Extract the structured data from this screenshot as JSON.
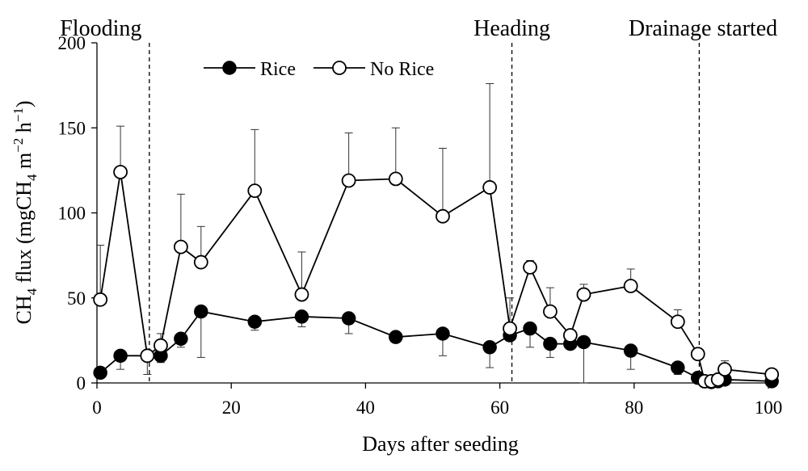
{
  "chart_data": {
    "type": "line",
    "xlabel": "Days after seeding",
    "ylabel": {
      "pre": "CH",
      "sub1": "4",
      "mid1": " flux (mgCH",
      "sub2": "4",
      "mid2": " m",
      "sup1": "−2",
      "mid3": " h",
      "sup2": "−1",
      "post": ")"
    },
    "xlim": [
      0,
      100
    ],
    "ylim": [
      0,
      200
    ],
    "xticks": [
      0,
      20,
      40,
      60,
      80,
      100
    ],
    "yticks": [
      0,
      50,
      100,
      150,
      200
    ],
    "legend_position": "top-left",
    "events": [
      {
        "label": "Flooding",
        "x": 7.8
      },
      {
        "label": "Heading",
        "x": 61.8
      },
      {
        "label": "Drainage started",
        "x": 89.7
      }
    ],
    "series": [
      {
        "name": "Rice",
        "marker": "filled",
        "points": [
          {
            "x": 0.5,
            "y": 6,
            "err": 0
          },
          {
            "x": 3.5,
            "y": 16,
            "err": 0
          },
          {
            "x": 7.5,
            "y": 16,
            "err": 0
          },
          {
            "x": 9.5,
            "y": 16,
            "err": 0
          },
          {
            "x": 12.5,
            "y": 26,
            "err": 0
          },
          {
            "x": 15.5,
            "y": 42,
            "err": 0
          },
          {
            "x": 23.5,
            "y": 36,
            "err": 0
          },
          {
            "x": 30.5,
            "y": 39,
            "err": 0
          },
          {
            "x": 37.5,
            "y": 38,
            "err": 0
          },
          {
            "x": 44.5,
            "y": 27,
            "err": 0
          },
          {
            "x": 51.5,
            "y": 29,
            "err": 0
          },
          {
            "x": 58.5,
            "y": 21,
            "err": 0
          },
          {
            "x": 61.5,
            "y": 28,
            "err": 0
          },
          {
            "x": 64.5,
            "y": 32,
            "err": 0
          },
          {
            "x": 67.5,
            "y": 23,
            "err": 0
          },
          {
            "x": 70.5,
            "y": 23,
            "err": 0
          },
          {
            "x": 72.5,
            "y": 24,
            "err": 0
          },
          {
            "x": 79.5,
            "y": 19,
            "err": 0
          },
          {
            "x": 86.5,
            "y": 9,
            "err": 0
          },
          {
            "x": 89.5,
            "y": 3,
            "err": 0
          },
          {
            "x": 90.5,
            "y": 1,
            "err": 0
          },
          {
            "x": 91.5,
            "y": 0.5,
            "err": 0
          },
          {
            "x": 92.5,
            "y": 1,
            "err": 0
          },
          {
            "x": 93.5,
            "y": 2,
            "err": 0
          },
          {
            "x": 100.5,
            "y": 1,
            "err": 0
          }
        ]
      },
      {
        "name": "No Rice",
        "marker": "open",
        "points": [
          {
            "x": 0.5,
            "y": 49,
            "err": 32
          },
          {
            "x": 3.5,
            "y": 124,
            "err": 27
          },
          {
            "x": 7.5,
            "y": 16,
            "err": 0
          },
          {
            "x": 9.5,
            "y": 22,
            "err": 7
          },
          {
            "x": 12.5,
            "y": 80,
            "err": 31
          },
          {
            "x": 15.5,
            "y": 71,
            "err": 21
          },
          {
            "x": 23.5,
            "y": 113,
            "err": 36
          },
          {
            "x": 30.5,
            "y": 52,
            "err": 25
          },
          {
            "x": 37.5,
            "y": 119,
            "err": 28
          },
          {
            "x": 44.5,
            "y": 120,
            "err": 30
          },
          {
            "x": 51.5,
            "y": 98,
            "err": 40
          },
          {
            "x": 58.5,
            "y": 115,
            "err": 61
          },
          {
            "x": 61.5,
            "y": 32,
            "err": 18
          },
          {
            "x": 64.5,
            "y": 68,
            "err": 4
          },
          {
            "x": 67.5,
            "y": 42,
            "err": 14
          },
          {
            "x": 70.5,
            "y": 28,
            "err": 0
          },
          {
            "x": 72.5,
            "y": 52,
            "err": 6
          },
          {
            "x": 79.5,
            "y": 57,
            "err": 10
          },
          {
            "x": 86.5,
            "y": 36,
            "err": 7
          },
          {
            "x": 89.5,
            "y": 17,
            "err": 0
          },
          {
            "x": 90.5,
            "y": 1,
            "err": 0
          },
          {
            "x": 91.5,
            "y": 1,
            "err": 0
          },
          {
            "x": 92.5,
            "y": 2,
            "err": 0
          },
          {
            "x": 93.5,
            "y": 8,
            "err": 5
          },
          {
            "x": 100.5,
            "y": 5,
            "err": 0
          }
        ]
      }
    ],
    "lower_error_bars": [
      {
        "series": "Rice",
        "x": 3.5,
        "low": 8
      },
      {
        "series": "Rice",
        "x": 7.5,
        "low": 5
      },
      {
        "series": "Rice",
        "x": 9.5,
        "low": 12
      },
      {
        "series": "Rice",
        "x": 12.5,
        "low": 21
      },
      {
        "series": "Rice",
        "x": 15.5,
        "low": 15
      },
      {
        "series": "Rice",
        "x": 23.5,
        "low": 31
      },
      {
        "series": "Rice",
        "x": 30.5,
        "low": 33
      },
      {
        "series": "Rice",
        "x": 37.5,
        "low": 29
      },
      {
        "series": "Rice",
        "x": 51.5,
        "low": 16
      },
      {
        "series": "Rice",
        "x": 58.5,
        "low": 9
      },
      {
        "series": "Rice",
        "x": 64.5,
        "low": 21
      },
      {
        "series": "Rice",
        "x": 67.5,
        "low": 15
      },
      {
        "series": "Rice",
        "x": 72.5,
        "low": 0
      },
      {
        "series": "Rice",
        "x": 79.5,
        "low": 8
      },
      {
        "series": "Rice",
        "x": 86.5,
        "low": 5
      }
    ]
  }
}
